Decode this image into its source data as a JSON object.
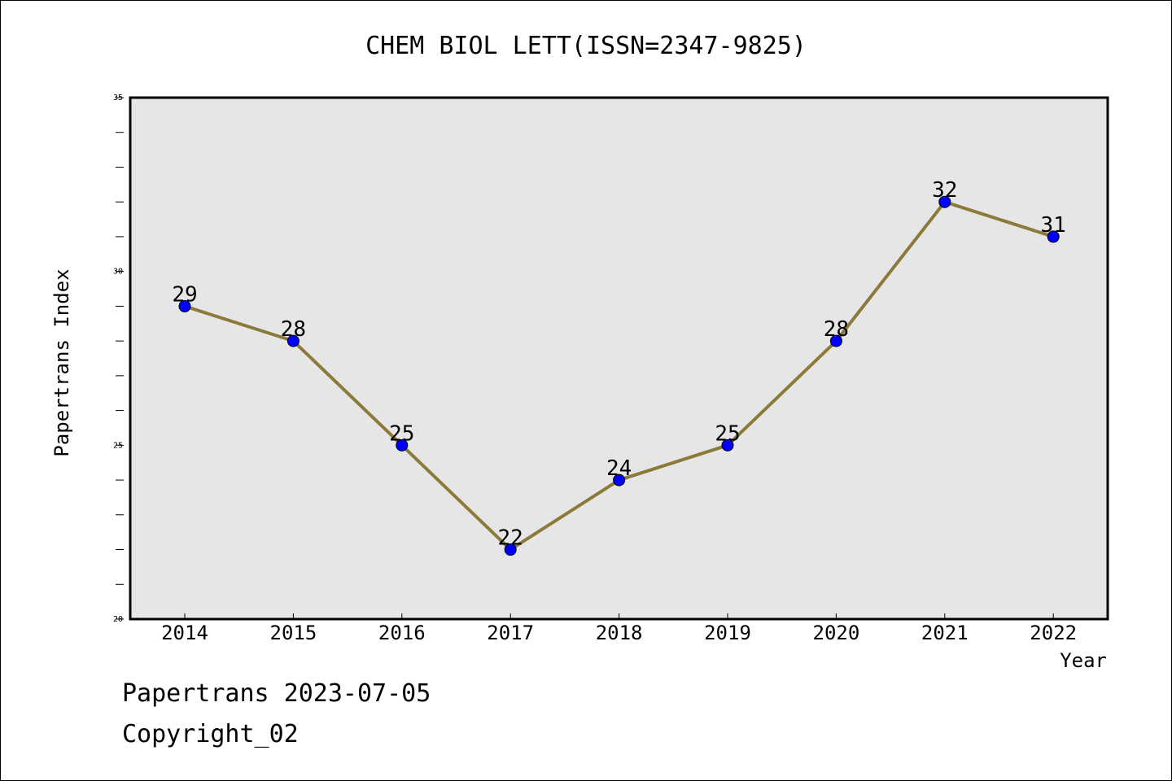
{
  "chart_data": {
    "type": "line",
    "title": "CHEM BIOL LETT(ISSN=2347-9825)",
    "xlabel": "Year",
    "ylabel": "Papertrans Index",
    "categories": [
      "2014",
      "2015",
      "2016",
      "2017",
      "2018",
      "2019",
      "2020",
      "2021",
      "2022"
    ],
    "series": [
      {
        "values": [
          29,
          28,
          25,
          22,
          24,
          25,
          28,
          32,
          31
        ]
      }
    ],
    "ylim": [
      20,
      35
    ],
    "yticks": [
      20,
      25,
      30,
      35
    ],
    "grid": false,
    "plot_background": "#e6e6e6",
    "line_color": "#8c7a3a",
    "marker_color": "#0000ff"
  },
  "footer": {
    "date_line": "Papertrans 2023-07-05",
    "copyright": "Copyright_02"
  }
}
